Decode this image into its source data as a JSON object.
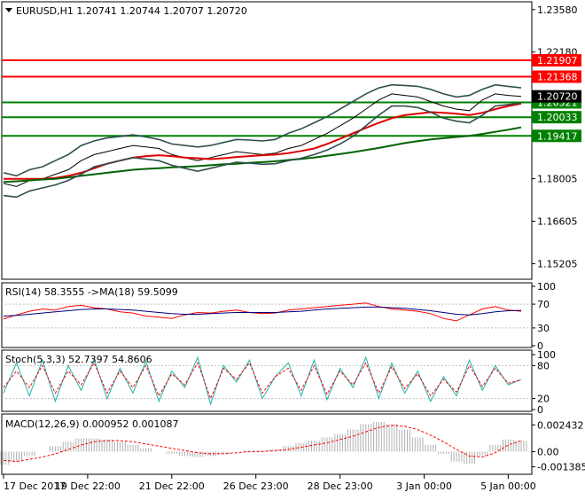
{
  "chart_data": {
    "type": "line",
    "main": {
      "symbol_header": "EURUSD,H1  1.20741 1.20744 1.20707 1.20720",
      "price_ticks": [
        "1.23580",
        "1.22180",
        "1.20780",
        "1.19380",
        "1.18005",
        "1.16605",
        "1.15205"
      ],
      "tick_values": [
        1.2358,
        1.2218,
        1.2078,
        1.1938,
        1.18005,
        1.16605,
        1.15205
      ],
      "ylim": [
        1.1475,
        1.2372
      ],
      "current_price": {
        "label": "1.20720",
        "value": 1.2072
      },
      "levels": [
        {
          "label": "1.21907",
          "value": 1.21907,
          "color": "#ff0000"
        },
        {
          "label": "1.21368",
          "value": 1.21368,
          "color": "#ff0000"
        },
        {
          "label": "1.20521",
          "value": 1.20521,
          "color": "#008000"
        },
        {
          "label": "1.20033",
          "value": 1.20033,
          "color": "#008000"
        },
        {
          "label": "1.19417",
          "value": 1.19417,
          "color": "#008000"
        }
      ],
      "series": [
        {
          "key": "price",
          "color": "#000000",
          "values": [
            1.1785,
            1.1775,
            1.1795,
            1.18,
            1.1815,
            1.183,
            1.186,
            1.188,
            1.189,
            1.19,
            1.191,
            1.1905,
            1.19,
            1.188,
            1.187,
            1.186,
            1.187,
            1.188,
            1.189,
            1.1885,
            1.188,
            1.1885,
            1.19,
            1.191,
            1.193,
            1.195,
            1.1975,
            1.2,
            1.203,
            1.206,
            1.208,
            1.2075,
            1.207,
            1.2055,
            1.204,
            1.203,
            1.2025,
            1.206,
            1.208,
            1.2075,
            1.2072
          ]
        },
        {
          "key": "ma-red",
          "color": "#e00000",
          "values": [
            1.18,
            1.18,
            1.18,
            1.18,
            1.1803,
            1.181,
            1.182,
            1.1835,
            1.185,
            1.186,
            1.187,
            1.1875,
            1.1878,
            1.1875,
            1.187,
            1.1868,
            1.1865,
            1.1868,
            1.1872,
            1.1875,
            1.1878,
            1.188,
            1.1885,
            1.1892,
            1.19,
            1.1915,
            1.1932,
            1.195,
            1.1968,
            1.1985,
            1.2,
            1.201,
            1.2015,
            1.202,
            1.2018,
            1.2015,
            1.201,
            1.2018,
            1.203,
            1.204,
            1.2048
          ]
        },
        {
          "key": "ma-green",
          "color": "#006400",
          "values": [
            1.179,
            1.1792,
            1.1795,
            1.1798,
            1.18,
            1.1805,
            1.181,
            1.1815,
            1.182,
            1.1825,
            1.183,
            1.1833,
            1.1835,
            1.1838,
            1.184,
            1.1842,
            1.1845,
            1.1848,
            1.185,
            1.1853,
            1.1855,
            1.1858,
            1.1862,
            1.1866,
            1.187,
            1.1876,
            1.1882,
            1.1888,
            1.1895,
            1.1902,
            1.191,
            1.1918,
            1.1924,
            1.193,
            1.1934,
            1.1938,
            1.1942,
            1.1948,
            1.1955,
            1.1962,
            1.197
          ]
        },
        {
          "key": "bb-upper",
          "color": "#2f4f4f",
          "values": [
            1.182,
            1.181,
            1.183,
            1.184,
            1.186,
            1.188,
            1.191,
            1.1925,
            1.1935,
            1.194,
            1.1945,
            1.1938,
            1.193,
            1.1915,
            1.191,
            1.1905,
            1.191,
            1.192,
            1.193,
            1.1928,
            1.1925,
            1.193,
            1.195,
            1.1965,
            1.1985,
            1.2005,
            1.203,
            1.2055,
            1.208,
            1.21,
            1.211,
            1.2108,
            1.2105,
            1.2095,
            1.208,
            1.207,
            1.2075,
            1.2095,
            1.211,
            1.2105,
            1.21
          ]
        },
        {
          "key": "bb-lower",
          "color": "#2f4f4f",
          "values": [
            1.1745,
            1.174,
            1.176,
            1.177,
            1.178,
            1.1795,
            1.1815,
            1.184,
            1.185,
            1.186,
            1.187,
            1.1865,
            1.186,
            1.1845,
            1.1835,
            1.1825,
            1.1835,
            1.1845,
            1.1855,
            1.1852,
            1.1848,
            1.185,
            1.186,
            1.1868,
            1.188,
            1.1895,
            1.1915,
            1.194,
            1.1975,
            1.201,
            1.204,
            1.204,
            1.2035,
            1.202,
            1.2,
            1.199,
            1.1985,
            1.201,
            1.204,
            1.2045,
            1.205
          ]
        }
      ]
    },
    "rsi": {
      "label": "RSI(14) 58.3555  ->MA(18) 59.5099",
      "ticks": [
        "100",
        "70",
        "30",
        "0"
      ],
      "tick_values": [
        100,
        70,
        30,
        0
      ],
      "ylim": [
        0,
        100
      ],
      "series": [
        {
          "key": "rsi",
          "color": "#ff0000",
          "values": [
            45,
            52,
            58,
            62,
            60,
            66,
            68,
            64,
            62,
            57,
            55,
            50,
            48,
            46,
            52,
            56,
            55,
            58,
            60,
            56,
            54,
            55,
            60,
            62,
            64,
            66,
            68,
            70,
            72,
            66,
            62,
            60,
            58,
            54,
            46,
            42,
            52,
            62,
            66,
            60,
            58
          ]
        },
        {
          "key": "rsi-ma",
          "color": "#000080",
          "values": [
            50,
            51,
            53,
            55,
            57,
            59,
            61,
            62,
            62,
            61,
            60,
            58,
            56,
            54,
            53,
            53,
            54,
            55,
            56,
            56,
            56,
            56,
            57,
            58,
            60,
            62,
            63,
            64,
            65,
            65,
            64,
            63,
            61,
            59,
            56,
            53,
            52,
            54,
            57,
            59,
            59.5
          ]
        }
      ]
    },
    "stoch": {
      "label": "Stoch(5,3,3) 52.7397 54.8606",
      "ticks": [
        "100",
        "80",
        "20",
        "0"
      ],
      "tick_values": [
        100,
        80,
        20,
        0
      ],
      "ylim": [
        0,
        100
      ],
      "series": [
        {
          "key": "stoch-main",
          "color": "#20b2aa",
          "values": [
            30,
            85,
            25,
            90,
            15,
            80,
            35,
            92,
            20,
            75,
            30,
            88,
            15,
            70,
            40,
            95,
            10,
            80,
            50,
            90,
            20,
            60,
            85,
            25,
            90,
            18,
            75,
            40,
            95,
            20,
            85,
            30,
            70,
            15,
            60,
            25,
            90,
            35,
            80,
            45,
            55
          ]
        },
        {
          "key": "stoch-signal",
          "color": "#ff0000",
          "values": [
            40,
            70,
            40,
            80,
            30,
            70,
            45,
            85,
            30,
            70,
            40,
            80,
            25,
            65,
            45,
            85,
            20,
            75,
            55,
            85,
            30,
            60,
            75,
            35,
            80,
            28,
            70,
            45,
            85,
            30,
            78,
            38,
            65,
            25,
            55,
            32,
            80,
            42,
            75,
            48,
            54
          ]
        }
      ]
    },
    "macd": {
      "label": "MACD(12,26,9) 0.000952 0.001087",
      "ticks": [
        "0.002432",
        "0.00",
        "-0.001385"
      ],
      "tick_values": [
        0.002432,
        0,
        -0.001385
      ],
      "ylim": [
        -0.0019,
        0.0031
      ],
      "histogram": [
        -0.0012,
        -0.0009,
        -0.0004,
        0.0,
        0.0005,
        0.0009,
        0.0012,
        0.0012,
        0.0011,
        0.0009,
        0.0006,
        0.0003,
        0.0,
        -0.0002,
        -0.0004,
        -0.0005,
        -0.0004,
        -0.0002,
        0.0,
        0.0001,
        0.0001,
        0.0002,
        0.0005,
        0.0008,
        0.001,
        0.0013,
        0.0016,
        0.002,
        0.0025,
        0.0027,
        0.0025,
        0.002,
        0.0013,
        0.0006,
        -0.0002,
        -0.0009,
        -0.0011,
        -0.0004,
        0.0006,
        0.0011,
        0.001
      ],
      "signal": [
        -0.0008,
        -0.0009,
        -0.0007,
        -0.0005,
        -0.0002,
        0.0002,
        0.0006,
        0.0009,
        0.001,
        0.001,
        0.0009,
        0.0007,
        0.0005,
        0.0003,
        0.0001,
        -0.0001,
        -0.0002,
        -0.0002,
        -0.0001,
        0.0,
        0.0,
        0.0001,
        0.0002,
        0.0004,
        0.0006,
        0.0008,
        0.0011,
        0.0014,
        0.0018,
        0.0022,
        0.0024,
        0.0023,
        0.002,
        0.0015,
        0.0009,
        0.0002,
        -0.0004,
        -0.0005,
        -0.0001,
        0.0006,
        0.001
      ],
      "hist_color": "#b0b0b0",
      "signal_color": "#ff0000"
    },
    "x_labels": [
      "17 Dec 2017",
      "19 Dec 22:00",
      "21 Dec 22:00",
      "26 Dec 23:00",
      "28 Dec 23:00",
      "3 Jan 00:00",
      "5 Jan 00:00"
    ],
    "x_label_index": [
      0,
      6.5,
      13,
      19.5,
      26,
      32.5,
      39
    ]
  }
}
